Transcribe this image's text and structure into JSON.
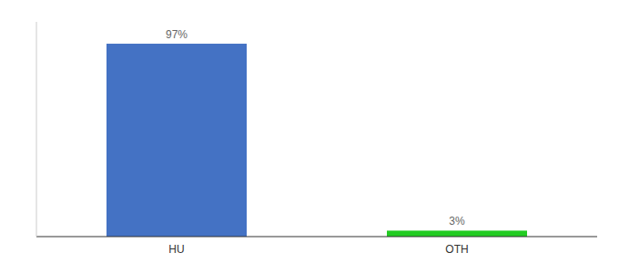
{
  "chart_data": {
    "type": "bar",
    "categories": [
      "HU",
      "OTH"
    ],
    "values": [
      97,
      3
    ],
    "value_labels": [
      "97%",
      "3%"
    ],
    "colors": [
      "#4472c4",
      "#22cc22"
    ],
    "ylim": [
      0,
      108
    ],
    "yticks": [],
    "grid": false,
    "data_labels": true,
    "tick_labels": "x"
  }
}
